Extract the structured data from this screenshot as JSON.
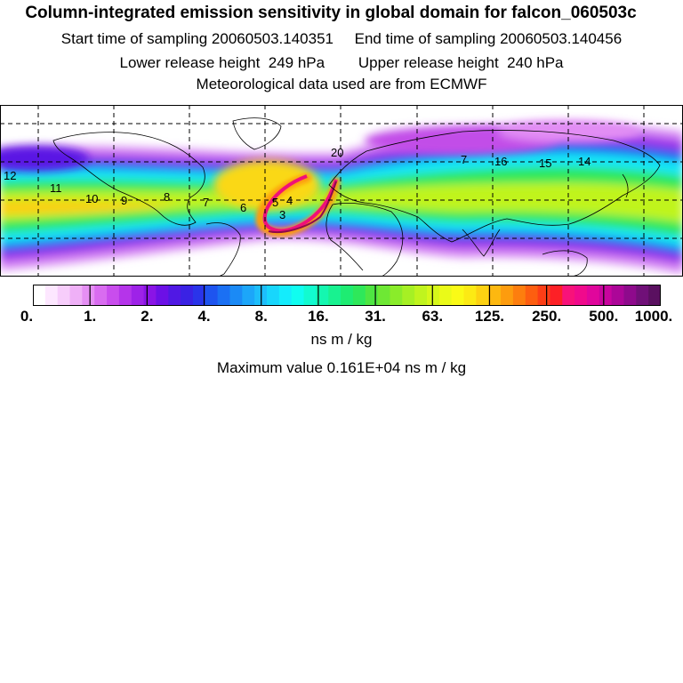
{
  "header": {
    "title": "Column-integrated emission sensitivity in global domain for falcon_060503c",
    "sampling_line": "Start time of sampling 20060503.140351     End time of sampling 20060503.140456",
    "release_line": "Lower release height  249 hPa        Upper release height  240 hPa",
    "met_line": "Meteorological data used are from ECMWF"
  },
  "map": {
    "trajectory_labels": [
      "20",
      "7",
      "16",
      "15",
      "14",
      "12",
      "11",
      "10",
      "9",
      "8",
      "7",
      "6",
      "5",
      "4",
      "3"
    ]
  },
  "colorbar": {
    "tick_labels": [
      "0.",
      "1.",
      "2.",
      "4.",
      "8.",
      "16.",
      "31.",
      "63.",
      "125.",
      "250.",
      "500.",
      "1000."
    ],
    "colors": [
      "#ffffff",
      "#fde7ff",
      "#f7cdfb",
      "#efb0f7",
      "#e58ff4",
      "#d96cf0",
      "#c94ded",
      "#b534ea",
      "#9e22e8",
      "#8a14e6",
      "#6c10e6",
      "#5018e4",
      "#3a22e4",
      "#2a34ea",
      "#1e54ef",
      "#1b70f3",
      "#1b8af6",
      "#1ca6f9",
      "#1dbefb",
      "#18d6fc",
      "#14ecfc",
      "#10fdf0",
      "#12fbd0",
      "#14f7b0",
      "#18f290",
      "#1eec72",
      "#2ee85a",
      "#4ee642",
      "#6ee834",
      "#8aec2a",
      "#a6f024",
      "#c0f41e",
      "#d6f81a",
      "#eafa18",
      "#fafa16",
      "#fcea14",
      "#fdd212",
      "#fdb810",
      "#fd9c0e",
      "#fd7e0e",
      "#fd5e10",
      "#fd3e16",
      "#fd2026",
      "#f8127a",
      "#f00a8c",
      "#e0069c",
      "#c8049e",
      "#ac0698",
      "#8e0a8c",
      "#701078",
      "#5a1060"
    ],
    "unit": "ns m / kg",
    "max_value_line": "Maximum value  0.161E+04 ns m / kg"
  }
}
